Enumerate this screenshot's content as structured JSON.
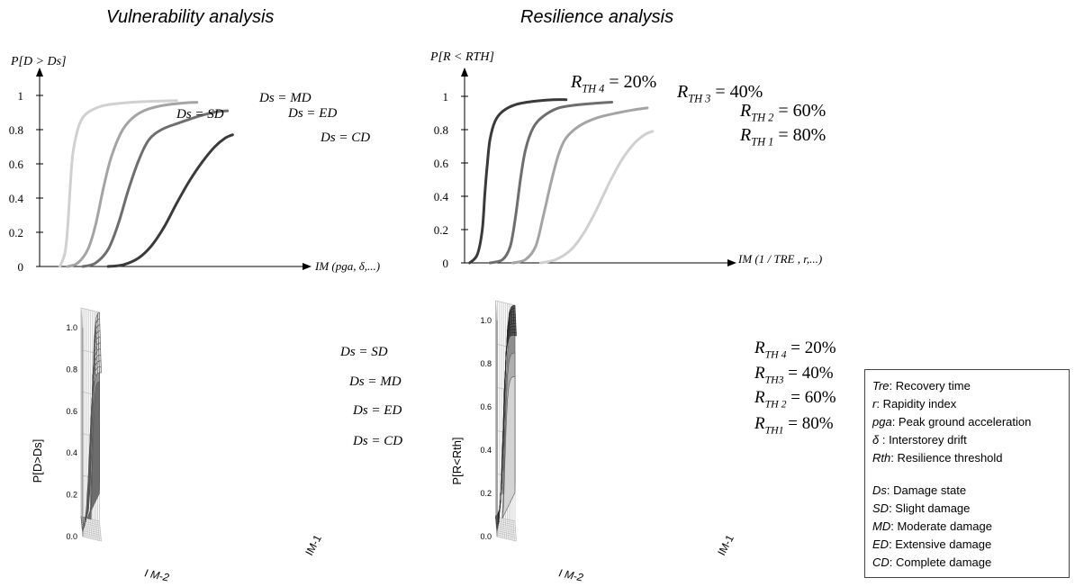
{
  "titles": {
    "vulnerability": "Vulnerability analysis",
    "resilience": "Resilience analysis"
  },
  "chart_data": [
    {
      "type": "line",
      "panel": "vulnerability-2d",
      "ylabel": "P[D > Ds]",
      "xlabel": "IM (pga, δ,...)",
      "ylim": [
        0,
        1
      ],
      "yticks": [
        "0",
        "0.2",
        "0.4",
        "0.6",
        "0.8",
        "1"
      ],
      "x_domain": [
        0,
        1
      ],
      "series": [
        {
          "name": "Ds = SD",
          "color": "#d0d0d0",
          "x": [
            0.08,
            0.1,
            0.11,
            0.12,
            0.13,
            0.15,
            0.17,
            0.2,
            0.25,
            0.32,
            0.42,
            0.54
          ],
          "values": [
            0.0,
            0.08,
            0.22,
            0.45,
            0.65,
            0.8,
            0.87,
            0.91,
            0.94,
            0.955,
            0.965,
            0.97
          ]
        },
        {
          "name": "Ds = MD",
          "color": "#a4a4a4",
          "x": [
            0.11,
            0.15,
            0.19,
            0.22,
            0.25,
            0.28,
            0.32,
            0.36,
            0.41,
            0.48,
            0.56,
            0.62
          ],
          "values": [
            0.0,
            0.02,
            0.1,
            0.24,
            0.45,
            0.63,
            0.78,
            0.86,
            0.91,
            0.94,
            0.955,
            0.96
          ]
        },
        {
          "name": "Ds = ED",
          "color": "#6e6e6e",
          "x": [
            0.17,
            0.22,
            0.27,
            0.31,
            0.35,
            0.39,
            0.43,
            0.48,
            0.55,
            0.63,
            0.7,
            0.74
          ],
          "values": [
            0.0,
            0.02,
            0.1,
            0.25,
            0.45,
            0.62,
            0.74,
            0.8,
            0.84,
            0.88,
            0.905,
            0.91
          ]
        },
        {
          "name": "Ds = CD",
          "color": "#3a3a3a",
          "x": [
            0.27,
            0.33,
            0.39,
            0.44,
            0.49,
            0.54,
            0.59,
            0.64,
            0.69,
            0.73,
            0.76
          ],
          "values": [
            0.0,
            0.01,
            0.05,
            0.12,
            0.23,
            0.37,
            0.5,
            0.61,
            0.7,
            0.75,
            0.77
          ]
        }
      ],
      "labels": [
        "Ds = SD",
        "Ds = MD",
        "Ds = ED",
        "Ds = CD"
      ]
    },
    {
      "type": "line",
      "panel": "resilience-2d",
      "ylabel": "P[R < RTH]",
      "xlabel": "IM (1 / TRE , r,...)",
      "ylim": [
        0,
        1
      ],
      "yticks": [
        "0",
        "0.2",
        "0.4",
        "0.6",
        "0.8",
        "1"
      ],
      "x_domain": [
        0,
        1
      ],
      "series": [
        {
          "name": "RTH4 = 20%",
          "color": "#3a3a3a",
          "x": [
            0.02,
            0.05,
            0.07,
            0.08,
            0.09,
            0.1,
            0.12,
            0.15,
            0.2,
            0.27,
            0.35,
            0.4
          ],
          "values": [
            0.0,
            0.05,
            0.2,
            0.42,
            0.6,
            0.74,
            0.85,
            0.91,
            0.95,
            0.97,
            0.98,
            0.98
          ]
        },
        {
          "name": "RTH3 = 40%",
          "color": "#6e6e6e",
          "x": [
            0.1,
            0.15,
            0.18,
            0.2,
            0.22,
            0.24,
            0.27,
            0.31,
            0.37,
            0.45,
            0.53,
            0.58
          ],
          "values": [
            0.0,
            0.02,
            0.1,
            0.27,
            0.5,
            0.68,
            0.81,
            0.88,
            0.93,
            0.95,
            0.96,
            0.965
          ]
        },
        {
          "name": "RTH2 = 60%",
          "color": "#a4a4a4",
          "x": [
            0.19,
            0.24,
            0.28,
            0.31,
            0.34,
            0.37,
            0.4,
            0.45,
            0.52,
            0.6,
            0.67,
            0.72
          ],
          "values": [
            0.0,
            0.02,
            0.1,
            0.28,
            0.48,
            0.65,
            0.75,
            0.82,
            0.87,
            0.9,
            0.92,
            0.93
          ]
        },
        {
          "name": "RTH1 = 80%",
          "color": "#d0d0d0",
          "x": [
            0.3,
            0.36,
            0.42,
            0.47,
            0.52,
            0.57,
            0.62,
            0.67,
            0.71,
            0.74
          ],
          "values": [
            0.0,
            0.02,
            0.08,
            0.18,
            0.32,
            0.48,
            0.62,
            0.72,
            0.77,
            0.79
          ]
        }
      ],
      "labels": [
        {
          "base": "R",
          "sub": "TH 4",
          "rest": " = 20%"
        },
        {
          "base": "R",
          "sub": "TH 3",
          "rest": " = 40%"
        },
        {
          "base": "R",
          "sub": "TH 2",
          "rest": " = 60%"
        },
        {
          "base": "R",
          "sub": "TH 1",
          "rest": " = 80%"
        }
      ]
    },
    {
      "type": "surface",
      "panel": "vulnerability-3d",
      "ylabel": "P[D>Ds]",
      "xlabel": "I M-2",
      "zlabel": "IM-1",
      "yticks": [
        "0.0",
        "0.2",
        "0.4",
        "0.6",
        "0.8",
        "1.0"
      ],
      "ylim": [
        0,
        1
      ],
      "surface_color": "#dcdcdc",
      "series_labels": [
        "Ds = SD",
        "Ds = MD",
        "Ds = ED",
        "Ds = CD"
      ]
    },
    {
      "type": "surface",
      "panel": "resilience-3d",
      "ylabel": "P[R<Rth]",
      "xlabel": "I M-2",
      "zlabel": "IM-1",
      "yticks": [
        "0.0",
        "0.2",
        "0.4",
        "0.6",
        "0.8",
        "1.0"
      ],
      "ylim": [
        0,
        1
      ],
      "surface_color": "#5c5c5c",
      "series_labels": [
        {
          "base": "R",
          "sub": "TH 4",
          "rest": " = 20%"
        },
        {
          "base": "R",
          "sub": "TH3",
          "rest": " = 40%"
        },
        {
          "base": "R",
          "sub": "TH 2",
          "rest": " = 60%"
        },
        {
          "base": "R",
          "sub": "TH1",
          "rest": " = 80%"
        }
      ]
    }
  ],
  "legend": {
    "items": [
      {
        "key": "Tre",
        "text": ": Recovery time"
      },
      {
        "key": "r",
        "text": ": Rapidity index"
      },
      {
        "key": "pga",
        "text": ": Peak ground acceleration"
      },
      {
        "key": "δ",
        "text": " : Interstorey drift"
      },
      {
        "key": "Rth",
        "text": ": Resilience threshold"
      },
      {
        "key": "",
        "text": ""
      },
      {
        "key": "Ds",
        "text": ": Damage state"
      },
      {
        "key": "SD",
        "text": ": Slight damage"
      },
      {
        "key": "MD",
        "text": ": Moderate damage"
      },
      {
        "key": "ED",
        "text": ": Extensive damage"
      },
      {
        "key": "CD",
        "text": ": Complete damage"
      }
    ]
  }
}
